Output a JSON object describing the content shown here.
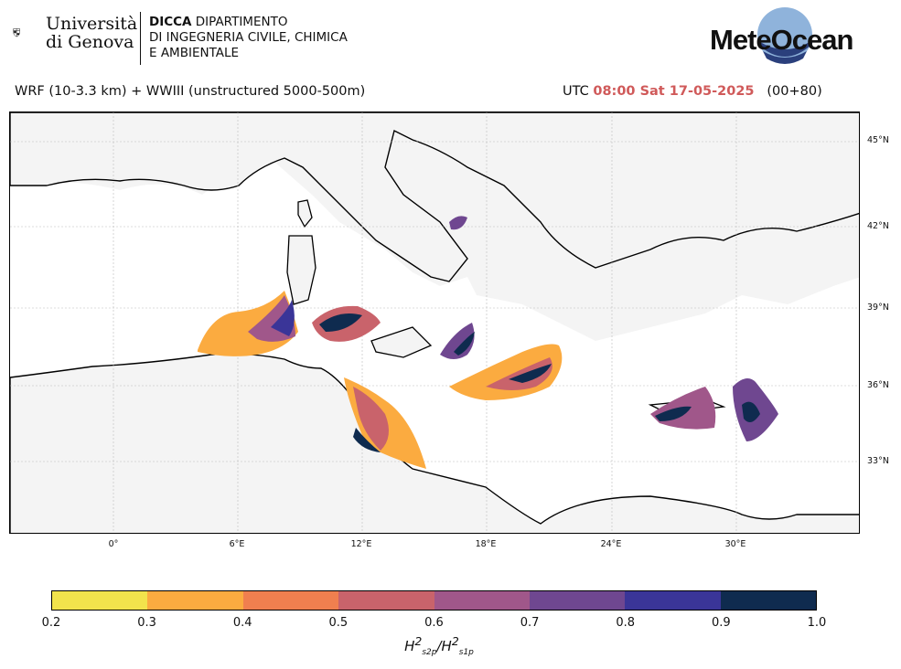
{
  "header": {
    "university": {
      "line1": "Università",
      "line2": "di Genova"
    },
    "dept": {
      "abbr": "DICCA",
      "line1_rest": " DIPARTIMENTO",
      "line2": "DI INGEGNERIA CIVILE, CHIMICA",
      "line3": "E AMBIENTALE"
    },
    "brand": "MeteOcean",
    "model": "WRF (10-3.3 km) + WWIII (unstructured 5000-500m)",
    "time_prefix": "UTC ",
    "time_value": "08:00 Sat 17-05-2025",
    "lead": "(00+80)"
  },
  "map": {
    "lat_labels": [
      "45°N",
      "42°N",
      "39°N",
      "36°N",
      "33°N"
    ],
    "lon_labels": [
      "0°",
      "6°E",
      "12°E",
      "18°E",
      "24°E",
      "30°E"
    ]
  },
  "colorbar": {
    "ticks": [
      "0.2",
      "0.3",
      "0.4",
      "0.5",
      "0.6",
      "0.7",
      "0.8",
      "0.9",
      "1.0"
    ],
    "colors": [
      "#f2e34c",
      "#fbab40",
      "#f07f4f",
      "#c9636b",
      "#a0578a",
      "#6f4790",
      "#3a3598",
      "#0f2b4f"
    ],
    "label_main": "H",
    "label_sub1": "s2p",
    "label_sub2": "s1p"
  }
}
